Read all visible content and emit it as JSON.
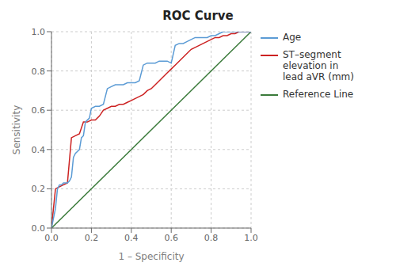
{
  "chart_data": {
    "type": "line",
    "title": "ROC Curve",
    "xlabel": "1 – Specificity",
    "ylabel": "Sensitivity",
    "xlim": [
      0.0,
      1.0
    ],
    "ylim": [
      0.0,
      1.0
    ],
    "xticks": [
      {
        "value": 0.0,
        "label": "0.0"
      },
      0.2,
      0.4,
      0.6,
      0.8,
      {
        "value": 1.0,
        "label": "1.0"
      }
    ],
    "yticks": [
      {
        "value": 0.0,
        "label": "0.0"
      },
      0.2,
      0.4,
      0.6,
      0.8,
      {
        "value": 1.0,
        "label": "1.0"
      }
    ],
    "grid": true,
    "legend": "right",
    "series": [
      {
        "name": "Age",
        "color": "#5b9bd5",
        "x": [
          0.0,
          0.01,
          0.02,
          0.03,
          0.04,
          0.05,
          0.06,
          0.07,
          0.08,
          0.09,
          0.1,
          0.11,
          0.12,
          0.13,
          0.14,
          0.15,
          0.16,
          0.17,
          0.18,
          0.19,
          0.2,
          0.22,
          0.24,
          0.26,
          0.28,
          0.3,
          0.32,
          0.34,
          0.36,
          0.38,
          0.4,
          0.42,
          0.44,
          0.46,
          0.48,
          0.5,
          0.52,
          0.54,
          0.56,
          0.58,
          0.6,
          0.62,
          0.64,
          0.66,
          0.68,
          0.7,
          0.72,
          0.74,
          0.76,
          0.78,
          0.8,
          0.82,
          0.84,
          0.86,
          0.88,
          0.9,
          0.92,
          0.94,
          0.96,
          0.98,
          1.0
        ],
        "values": [
          0.0,
          0.05,
          0.1,
          0.2,
          0.22,
          0.22,
          0.23,
          0.23,
          0.23,
          0.24,
          0.26,
          0.36,
          0.38,
          0.39,
          0.4,
          0.46,
          0.47,
          0.54,
          0.55,
          0.56,
          0.61,
          0.62,
          0.62,
          0.63,
          0.71,
          0.72,
          0.73,
          0.73,
          0.73,
          0.74,
          0.74,
          0.74,
          0.75,
          0.83,
          0.84,
          0.84,
          0.84,
          0.85,
          0.85,
          0.85,
          0.84,
          0.93,
          0.94,
          0.94,
          0.95,
          0.96,
          0.97,
          0.97,
          0.97,
          0.97,
          0.98,
          0.98,
          0.99,
          1.0,
          1.0,
          1.0,
          1.0,
          1.0,
          1.0,
          1.0,
          1.0
        ]
      },
      {
        "name": "ST–segment elevation in\nlead aVR (mm)",
        "color": "#cc2222",
        "x": [
          0.0,
          0.02,
          0.04,
          0.06,
          0.08,
          0.1,
          0.12,
          0.14,
          0.16,
          0.18,
          0.2,
          0.22,
          0.24,
          0.26,
          0.28,
          0.3,
          0.32,
          0.34,
          0.36,
          0.38,
          0.4,
          0.42,
          0.44,
          0.46,
          0.48,
          0.5,
          0.52,
          0.54,
          0.56,
          0.58,
          0.6,
          0.62,
          0.64,
          0.66,
          0.68,
          0.7,
          0.72,
          0.74,
          0.76,
          0.78,
          0.8,
          0.82,
          0.84,
          0.86,
          0.88,
          0.9,
          0.92,
          0.94,
          0.96,
          0.98,
          1.0
        ],
        "values": [
          0.0,
          0.2,
          0.21,
          0.22,
          0.23,
          0.46,
          0.47,
          0.48,
          0.54,
          0.54,
          0.55,
          0.55,
          0.57,
          0.6,
          0.61,
          0.62,
          0.62,
          0.63,
          0.63,
          0.64,
          0.65,
          0.66,
          0.67,
          0.68,
          0.7,
          0.71,
          0.73,
          0.75,
          0.77,
          0.79,
          0.81,
          0.83,
          0.85,
          0.87,
          0.89,
          0.91,
          0.92,
          0.93,
          0.94,
          0.95,
          0.96,
          0.97,
          0.97,
          0.98,
          0.98,
          0.99,
          0.99,
          1.0,
          1.0,
          1.0,
          1.0
        ]
      },
      {
        "name": "Reference Line",
        "color": "#3a7a3a",
        "x": [
          0,
          1
        ],
        "values": [
          0,
          1
        ]
      }
    ]
  }
}
